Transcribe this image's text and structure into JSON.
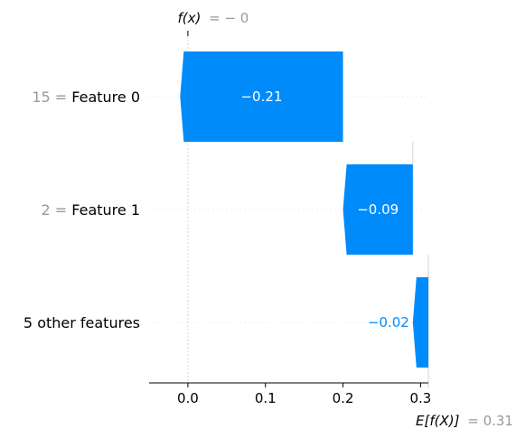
{
  "chart_data": {
    "type": "waterfall",
    "title": "",
    "xlabel": "",
    "ylabel": "",
    "xlim": [
      -0.05,
      0.31
    ],
    "x_ticks": [
      0.0,
      0.1,
      0.2,
      0.3
    ],
    "x_tick_labels": [
      "0.0",
      "0.1",
      "0.2",
      "0.3"
    ],
    "grid": false,
    "base_value": 0.31,
    "output_value": 0.0,
    "fx_annotation": {
      "label": "f(x)",
      "value_text": "= − 0",
      "value": 0.0
    },
    "efx_annotation": {
      "label": "E[f(X)]",
      "value_text": "= 0.31",
      "value": 0.31
    },
    "features": [
      {
        "value_text": "15",
        "eq": "=",
        "name": "Feature 0",
        "contribution": -0.21,
        "label": "−0.21"
      },
      {
        "value_text": "2",
        "eq": "=",
        "name": "Feature 1",
        "contribution": -0.09,
        "label": "−0.09"
      },
      {
        "value_text": "",
        "eq": "",
        "name": "5 other features",
        "contribution": -0.02,
        "label": "−0.02"
      }
    ],
    "colors": {
      "negative": "#008bfb",
      "text_inside": "#ffffff",
      "muted": "#999999",
      "guide": "#cccccc"
    }
  }
}
